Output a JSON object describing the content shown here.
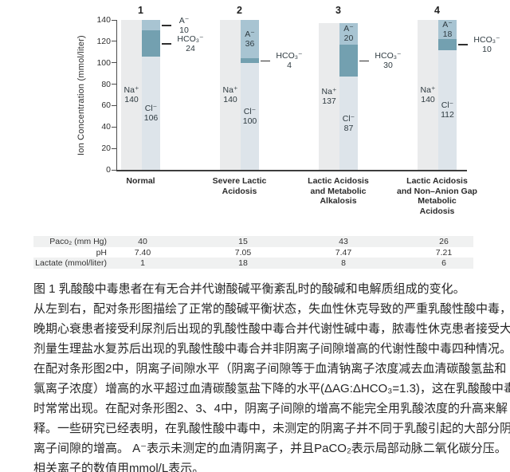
{
  "chart_data": {
    "type": "bar",
    "subtype": "paired-stacked-ion-columns",
    "title": "",
    "ylabel": "Ion Concentration (mmol/liter)",
    "ylim": [
      0,
      140
    ],
    "yticks": [
      0,
      20,
      40,
      60,
      80,
      100,
      120,
      140
    ],
    "grid": false,
    "categories": [
      "Normal",
      "Severe Lactic Acidosis",
      "Lactic Acidosis and Metabolic Alkalosis",
      "Lactic Acidosis and Non–Anion Gap Metabolic Acidosis"
    ],
    "series": [
      {
        "name": "Na⁺",
        "values": [
          140,
          140,
          137,
          140
        ]
      },
      {
        "name": "Cl⁻",
        "values": [
          106,
          100,
          87,
          112
        ]
      },
      {
        "name": "HCO₃⁻",
        "values": [
          24,
          4,
          30,
          10
        ]
      },
      {
        "name": "A⁻",
        "values": [
          10,
          36,
          20,
          18
        ]
      }
    ],
    "ion_labels": {
      "na": "Na⁺",
      "cl": "Cl⁻",
      "hco3": "HCO₃⁻",
      "a": "A⁻"
    },
    "colors": {
      "na": "#eaebec",
      "cl": "#dde4ea",
      "hco3": "#73a0b0",
      "a": "#a8c4d2"
    },
    "groups": [
      {
        "number": "1",
        "category_lines": [
          "Normal"
        ],
        "na": 140,
        "cl": 106,
        "hco3": 24,
        "a": 10,
        "a_label_outside": true
      },
      {
        "number": "2",
        "category_lines": [
          "Severe Lactic",
          "Acidosis"
        ],
        "na": 140,
        "cl": 100,
        "hco3": 4,
        "a": 36,
        "a_label_outside": false
      },
      {
        "number": "3",
        "category_lines": [
          "Lactic Acidosis",
          "and Metabolic",
          "Alkalosis"
        ],
        "na": 137,
        "cl": 87,
        "hco3": 30,
        "a": 20,
        "a_label_outside": false
      },
      {
        "number": "4",
        "category_lines": [
          "Lactic Acidosis",
          "and Non–Anion Gap",
          "Metabolic",
          "Acidosis"
        ],
        "na": 140,
        "cl": 112,
        "hco3": 10,
        "a": 18,
        "a_label_outside": false
      }
    ]
  },
  "table": {
    "rows": [
      {
        "label": "Paco₂ (mm Hg)",
        "values": [
          "40",
          "15",
          "43",
          "26"
        ],
        "shaded": true
      },
      {
        "label": "pH",
        "values": [
          "7.40",
          "7.05",
          "7.47",
          "7.21"
        ],
        "shaded": false
      },
      {
        "label": "Lactate (mmol/liter)",
        "values": [
          "1",
          "18",
          "8",
          "6"
        ],
        "shaded": true
      }
    ]
  },
  "caption": {
    "lines": [
      "图 1 乳酸酸中毒患者在有无合并代谢酸碱平衡紊乱时的酸碱和电解质组成的变化。",
      "从左到右，配对条形图描绘了正常的酸碱平衡状态，失血性休克导致的严重乳酸性酸中毒，",
      "晚期心衰患者接受利尿剂后出现的乳酸性酸中毒合并代谢性碱中毒，脓毒性休克患者接受大",
      "剂量生理盐水复苏后出现的乳酸性酸中毒合并非阴离子间隙增高的代谢性酸中毒四种情况。",
      "在配对条形图2中，阴离子间隙水平（阴离子间隙等于血清钠离子浓度减去血清碳酸氢盐和",
      "氯离子浓度）增高的水平超过血清碳酸氢盐下降的水平(ΔAG:ΔHCO₃=1.3)，这在乳酸酸中毒",
      "时常常出现。在配对条形图2、3、4中，阴离子间隙的增高不能完全用乳酸浓度的升高来解",
      "释。一些研究已经表明，在乳酸性酸中毒中，未测定的阴离子并不同于乳酸引起的大部分阴",
      "离子间隙的增高。 A⁻表示未测定的血清阴离子，并且PaCO₂表示局部动脉二氧化碳分压。"
    ],
    "last_line": {
      "prefix": "相关离子的数值用",
      "underlined": "mmol/L",
      "suffix": "表示。"
    }
  }
}
